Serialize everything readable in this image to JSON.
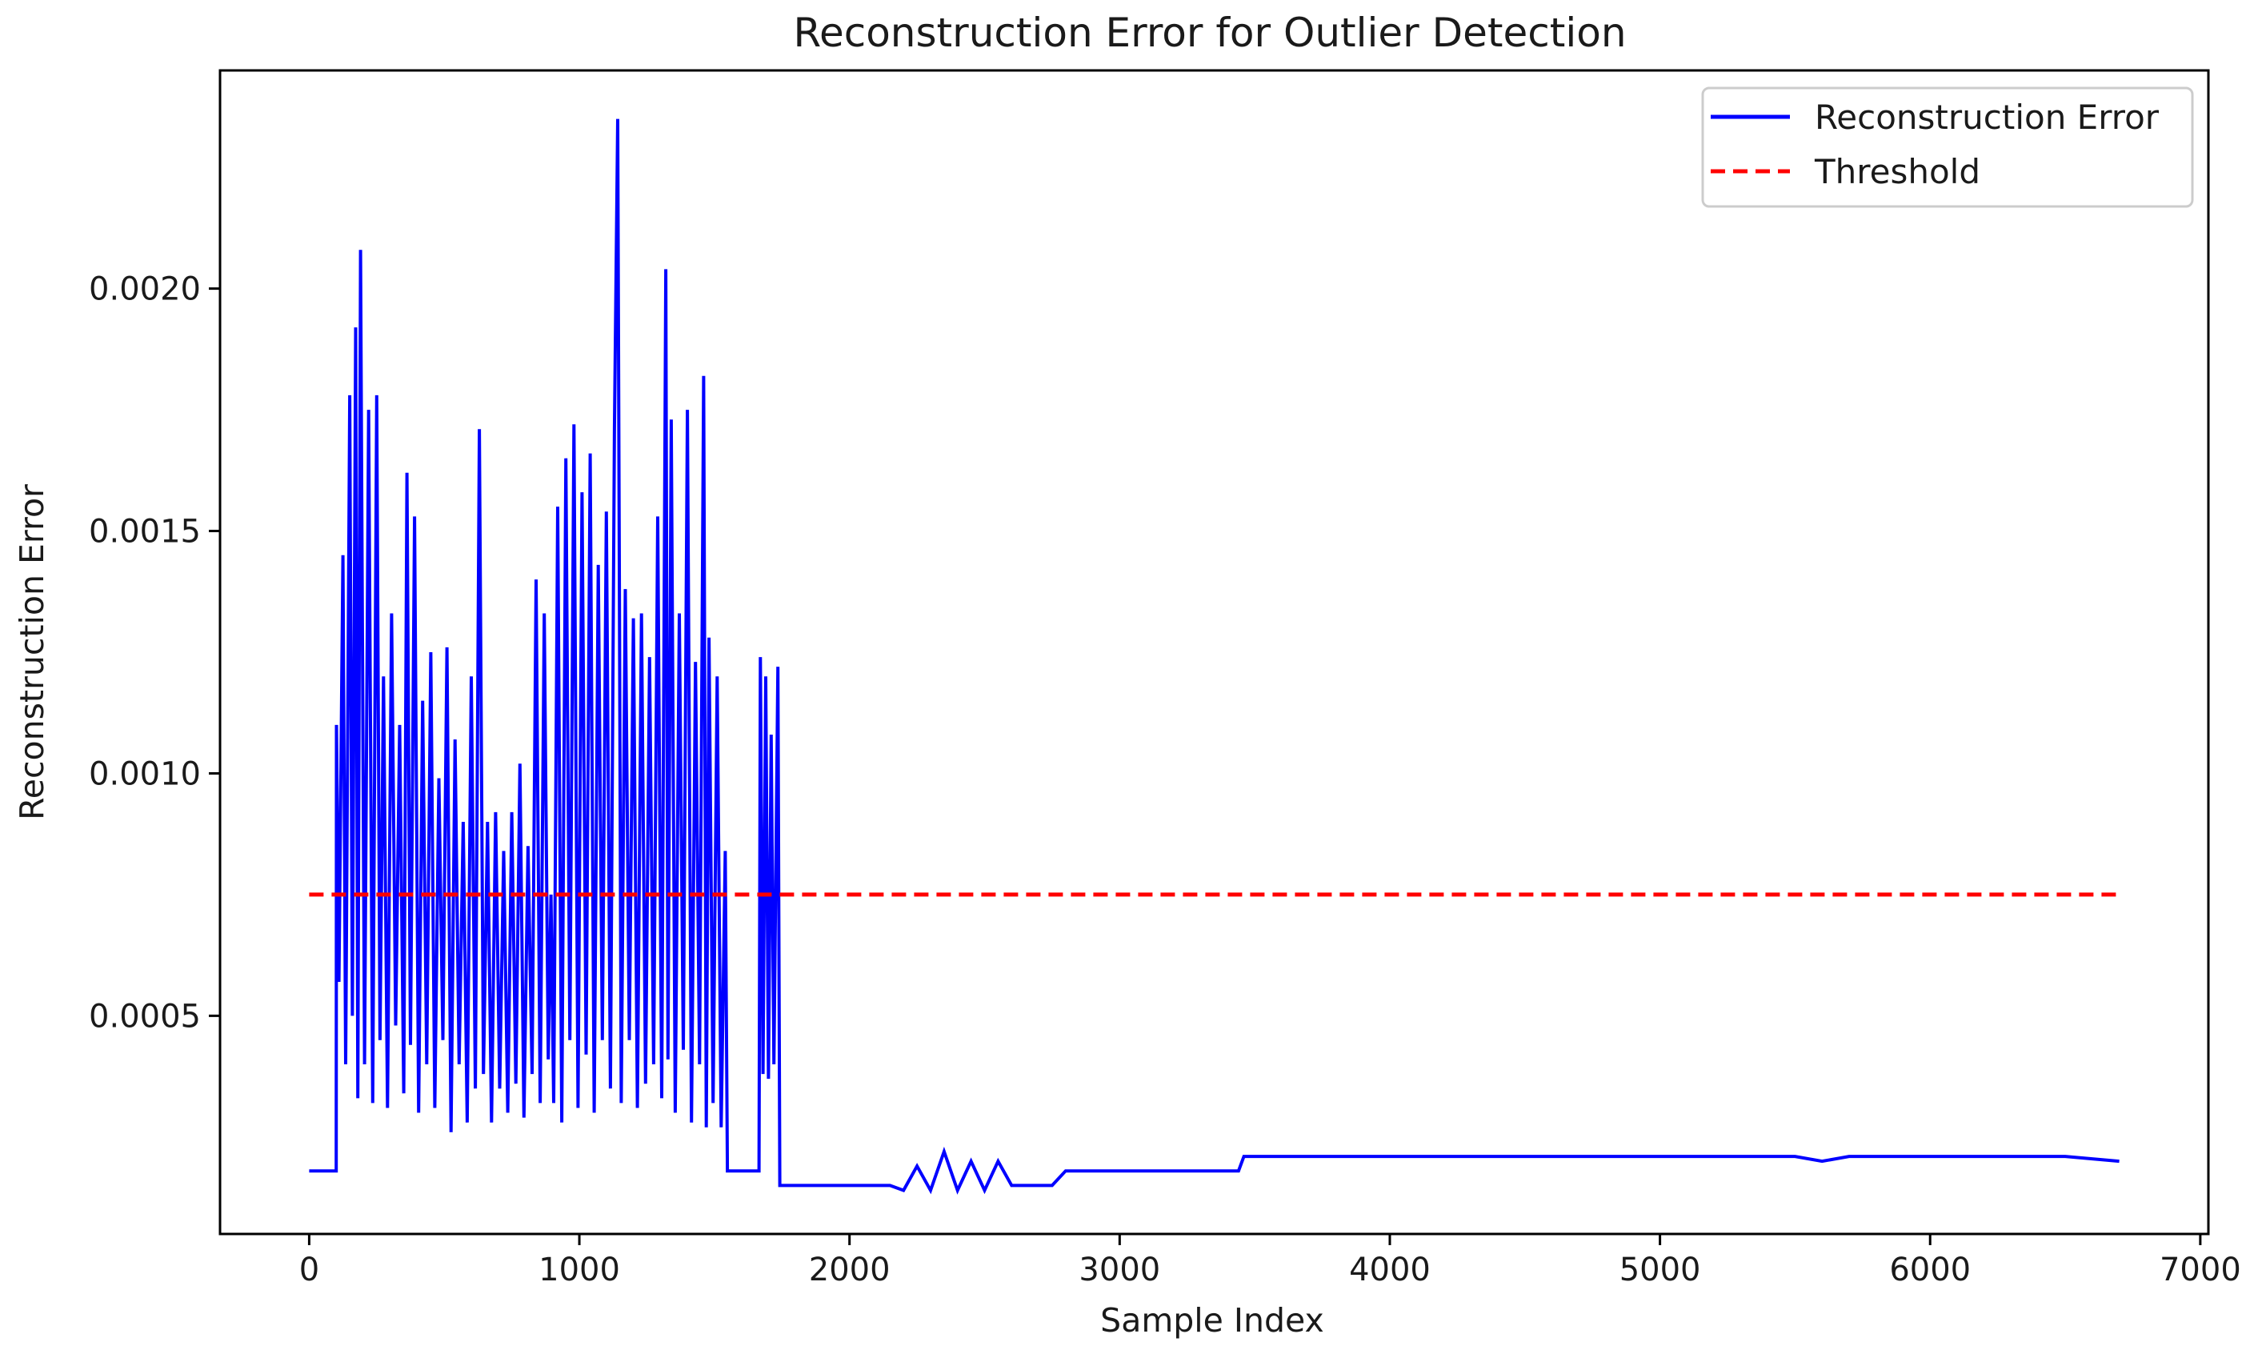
{
  "chart_data": {
    "type": "line",
    "title": "Reconstruction Error for Outlier Detection",
    "xlabel": "Sample Index",
    "ylabel": "Reconstruction Error",
    "xlim": [
      -330,
      7030
    ],
    "ylim": [
      5e-05,
      0.00245
    ],
    "xticks": [
      0,
      1000,
      2000,
      3000,
      4000,
      5000,
      6000,
      7000
    ],
    "xtick_labels": [
      "0",
      "1000",
      "2000",
      "3000",
      "4000",
      "5000",
      "6000",
      "7000"
    ],
    "yticks": [
      0.0005,
      0.001,
      0.0015,
      0.002
    ],
    "ytick_labels": [
      "0.0005",
      "0.0010",
      "0.0015",
      "0.0020"
    ],
    "grid": false,
    "legend_position": "top-right",
    "series": [
      {
        "name": "Reconstruction Error",
        "color": "#0000ff",
        "style": "solid",
        "x": [
          0,
          100,
          101,
          110,
          125,
          135,
          150,
          160,
          172,
          180,
          190,
          205,
          220,
          235,
          250,
          262,
          275,
          290,
          305,
          320,
          335,
          350,
          362,
          375,
          390,
          405,
          420,
          435,
          450,
          465,
          480,
          495,
          510,
          525,
          540,
          555,
          570,
          585,
          600,
          615,
          630,
          645,
          660,
          675,
          690,
          705,
          720,
          735,
          750,
          765,
          780,
          795,
          810,
          825,
          840,
          855,
          870,
          885,
          895,
          905,
          920,
          935,
          950,
          965,
          980,
          995,
          1010,
          1025,
          1040,
          1055,
          1070,
          1085,
          1100,
          1115,
          1130,
          1142,
          1155,
          1170,
          1185,
          1200,
          1215,
          1230,
          1245,
          1260,
          1275,
          1290,
          1305,
          1320,
          1328,
          1340,
          1355,
          1370,
          1385,
          1400,
          1415,
          1430,
          1445,
          1460,
          1470,
          1480,
          1495,
          1510,
          1525,
          1540,
          1548,
          1555,
          1600,
          1665,
          1670,
          1680,
          1690,
          1700,
          1710,
          1720,
          1735,
          1742,
          1750,
          1800,
          2000,
          2150,
          2200,
          2250,
          2300,
          2350,
          2400,
          2450,
          2500,
          2550,
          2600,
          2750,
          2800,
          3000,
          3200,
          3440,
          3460,
          3600,
          4000,
          4500,
          5000,
          5500,
          5600,
          5700,
          6000,
          6500,
          6700
        ],
        "y": [
          0.00018,
          0.00018,
          0.0011,
          0.00057,
          0.00145,
          0.0004,
          0.00178,
          0.0005,
          0.00192,
          0.00033,
          0.00208,
          0.0004,
          0.00175,
          0.00032,
          0.00178,
          0.00045,
          0.0012,
          0.00031,
          0.00133,
          0.00048,
          0.0011,
          0.00034,
          0.00162,
          0.00044,
          0.00153,
          0.0003,
          0.00115,
          0.0004,
          0.00125,
          0.00031,
          0.00099,
          0.00045,
          0.00126,
          0.00026,
          0.00107,
          0.0004,
          0.0009,
          0.00028,
          0.0012,
          0.00035,
          0.00171,
          0.00038,
          0.0009,
          0.00028,
          0.00092,
          0.00035,
          0.00084,
          0.0003,
          0.00092,
          0.00036,
          0.00102,
          0.00029,
          0.00085,
          0.00038,
          0.0014,
          0.00032,
          0.00133,
          0.00041,
          0.00075,
          0.00032,
          0.00155,
          0.00028,
          0.00165,
          0.00045,
          0.00172,
          0.00031,
          0.00158,
          0.00042,
          0.00166,
          0.0003,
          0.00143,
          0.00045,
          0.00154,
          0.00035,
          0.00171,
          0.00235,
          0.00032,
          0.00138,
          0.00045,
          0.00132,
          0.00031,
          0.00133,
          0.00036,
          0.00124,
          0.0004,
          0.00153,
          0.00033,
          0.00204,
          0.00041,
          0.00173,
          0.0003,
          0.00133,
          0.00043,
          0.00175,
          0.00028,
          0.00123,
          0.0004,
          0.00182,
          0.00027,
          0.00128,
          0.00032,
          0.0012,
          0.00027,
          0.00084,
          0.00018,
          0.00018,
          0.00018,
          0.00018,
          0.00124,
          0.00038,
          0.0012,
          0.00037,
          0.00108,
          0.0004,
          0.00122,
          0.00015,
          0.00015,
          0.00015,
          0.00015,
          0.00015,
          0.00014,
          0.00019,
          0.00014,
          0.00022,
          0.00014,
          0.0002,
          0.00014,
          0.0002,
          0.00015,
          0.00015,
          0.00018,
          0.00018,
          0.00018,
          0.00018,
          0.00021,
          0.00021,
          0.00021,
          0.00021,
          0.00021,
          0.00021,
          0.0002,
          0.00021,
          0.00021,
          0.00021,
          0.0002
        ]
      },
      {
        "name": "Threshold",
        "color": "#ff0000",
        "style": "dashed",
        "x": [
          0,
          6700
        ],
        "y": [
          0.00075,
          0.00075
        ]
      }
    ]
  }
}
